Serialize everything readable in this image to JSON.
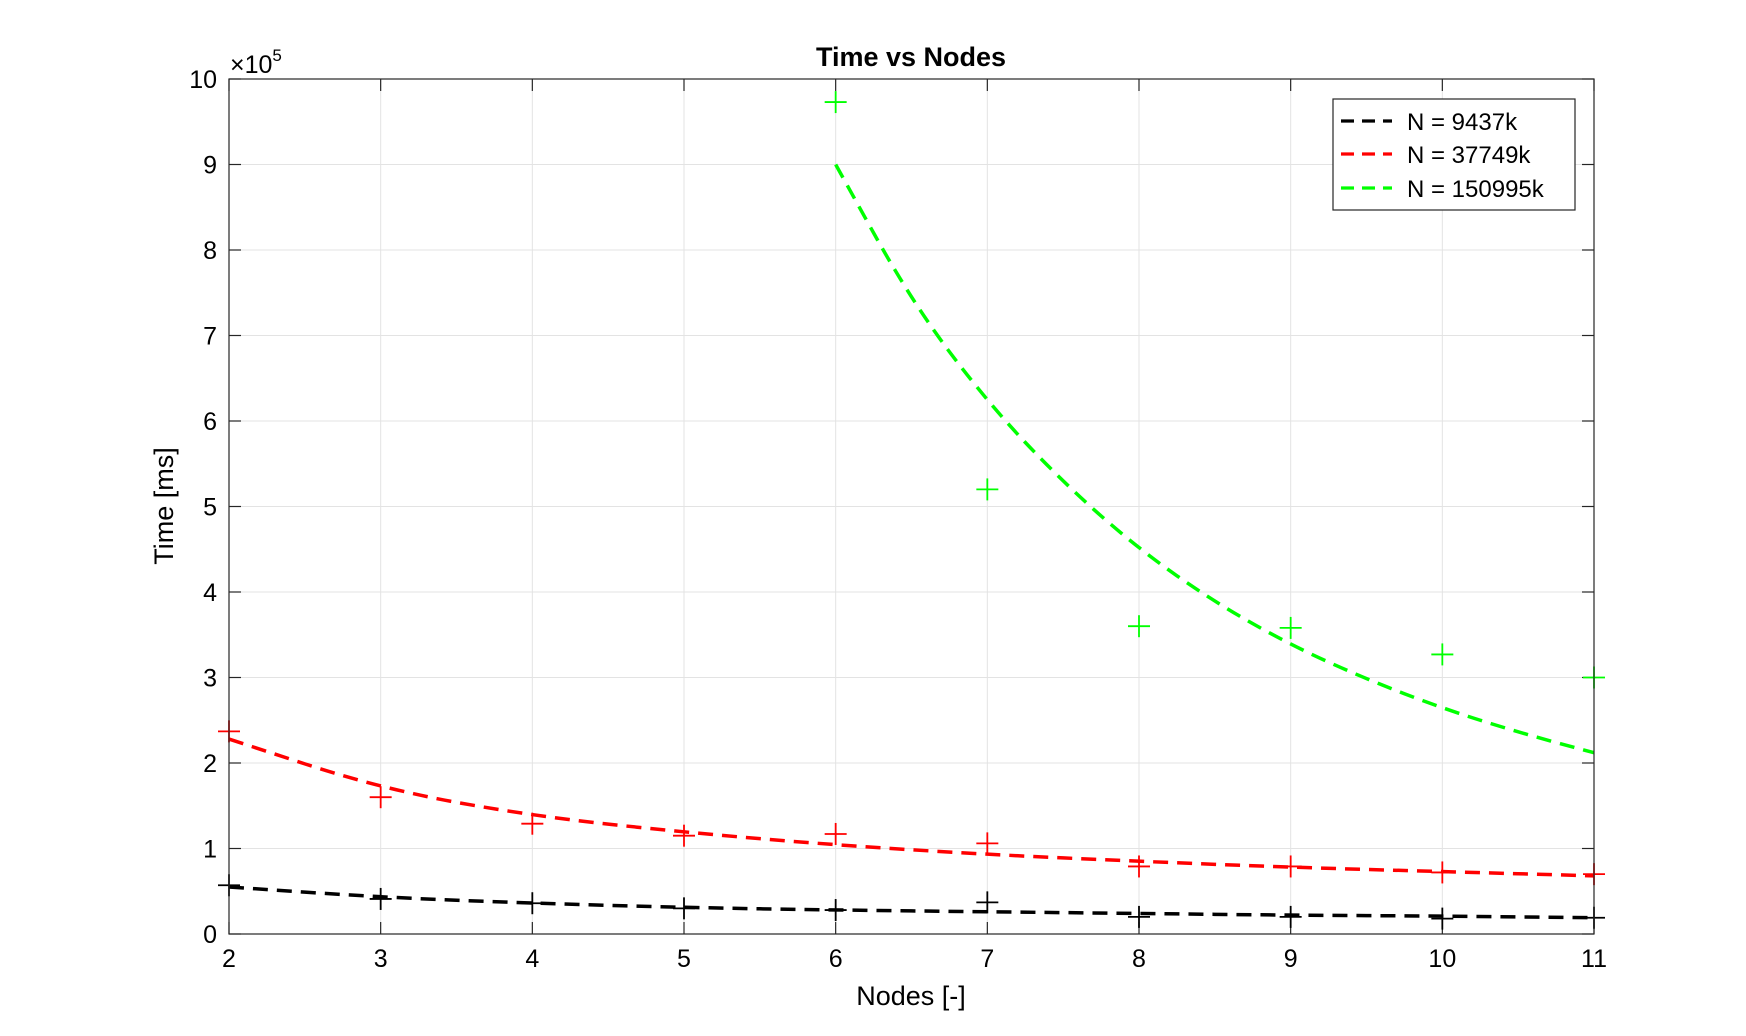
{
  "chart_data": {
    "type": "scatter",
    "title": "Time vs Nodes",
    "xlabel": "Nodes [-]",
    "ylabel": "Time [ms]",
    "y_exponent_label": "×10",
    "y_exponent_power": "5",
    "xlim": [
      2,
      11
    ],
    "ylim": [
      0,
      10
    ],
    "xticks": [
      2,
      3,
      4,
      5,
      6,
      7,
      8,
      9,
      10,
      11
    ],
    "yticks": [
      0,
      1,
      2,
      3,
      4,
      5,
      6,
      7,
      8,
      9,
      10
    ],
    "grid": true,
    "legend_position": "top-right",
    "series": [
      {
        "name": "N = 9437k",
        "color": "#000000",
        "marker": "plus",
        "x": [
          2,
          3,
          4,
          5,
          6,
          7,
          8,
          9,
          10,
          11
        ],
        "y": [
          0.57,
          0.41,
          0.36,
          0.3,
          0.28,
          0.37,
          0.2,
          0.2,
          0.18,
          0.19
        ],
        "fit_x": [
          2,
          3,
          4,
          5,
          6,
          7,
          8,
          9,
          10,
          11
        ],
        "fit_y": [
          0.55,
          0.43,
          0.36,
          0.31,
          0.28,
          0.26,
          0.24,
          0.22,
          0.21,
          0.19
        ]
      },
      {
        "name": "N = 37749k",
        "color": "#ff0000",
        "marker": "plus",
        "x": [
          2,
          3,
          4,
          5,
          6,
          7,
          8,
          9,
          10,
          11
        ],
        "y": [
          2.37,
          1.6,
          1.29,
          1.15,
          1.17,
          1.06,
          0.79,
          0.79,
          0.72,
          0.7
        ],
        "fit_x": [
          2,
          3,
          4,
          5,
          6,
          7,
          8,
          9,
          10,
          11
        ],
        "fit_y": [
          2.28,
          1.7,
          1.38,
          1.19,
          1.04,
          0.93,
          0.85,
          0.78,
          0.73,
          0.68
        ]
      },
      {
        "name": "N = 150995k",
        "color": "#00ff00",
        "marker": "plus",
        "x": [
          6,
          7,
          8,
          9,
          10,
          11
        ],
        "y": [
          9.73,
          5.2,
          3.6,
          3.58,
          3.27,
          3.0
        ],
        "fit_x": [
          6,
          6.5,
          7,
          7.5,
          8,
          8.5,
          9,
          9.5,
          10,
          10.5,
          11
        ],
        "fit_y": [
          9.0,
          7.4,
          6.22,
          5.28,
          4.5,
          3.88,
          3.38,
          2.98,
          2.64,
          2.36,
          2.12
        ]
      }
    ]
  }
}
